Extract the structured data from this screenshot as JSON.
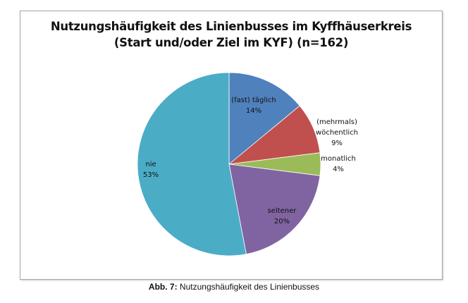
{
  "chart_data": {
    "type": "pie",
    "title_line1": "Nutzungshäufigkeit des Linienbusses im Kyffhäuserkreis",
    "title_line2": "(Start und/oder Ziel im KYF) (n=162)",
    "slices": [
      {
        "label": [
          "(fast) täglich"
        ],
        "value": 14,
        "display": "14%",
        "color": "#4f81bd"
      },
      {
        "label": [
          "(mehrmals)",
          "wöchentlich"
        ],
        "value": 9,
        "display": "9%",
        "color": "#c0504d"
      },
      {
        "label": [
          "monatlich"
        ],
        "value": 4,
        "display": "4%",
        "color": "#9bbb59"
      },
      {
        "label": [
          "seltener"
        ],
        "value": 20,
        "display": "20%",
        "color": "#8064a2"
      },
      {
        "label": [
          "nie"
        ],
        "value": 53,
        "display": "53%",
        "color": "#4bacc6"
      }
    ],
    "start": "top",
    "direction": "clockwise",
    "legend": "none"
  },
  "caption": {
    "prefix": "Abb. 7:",
    "text": " Nutzungshäufigkeit des Linienbusses"
  }
}
